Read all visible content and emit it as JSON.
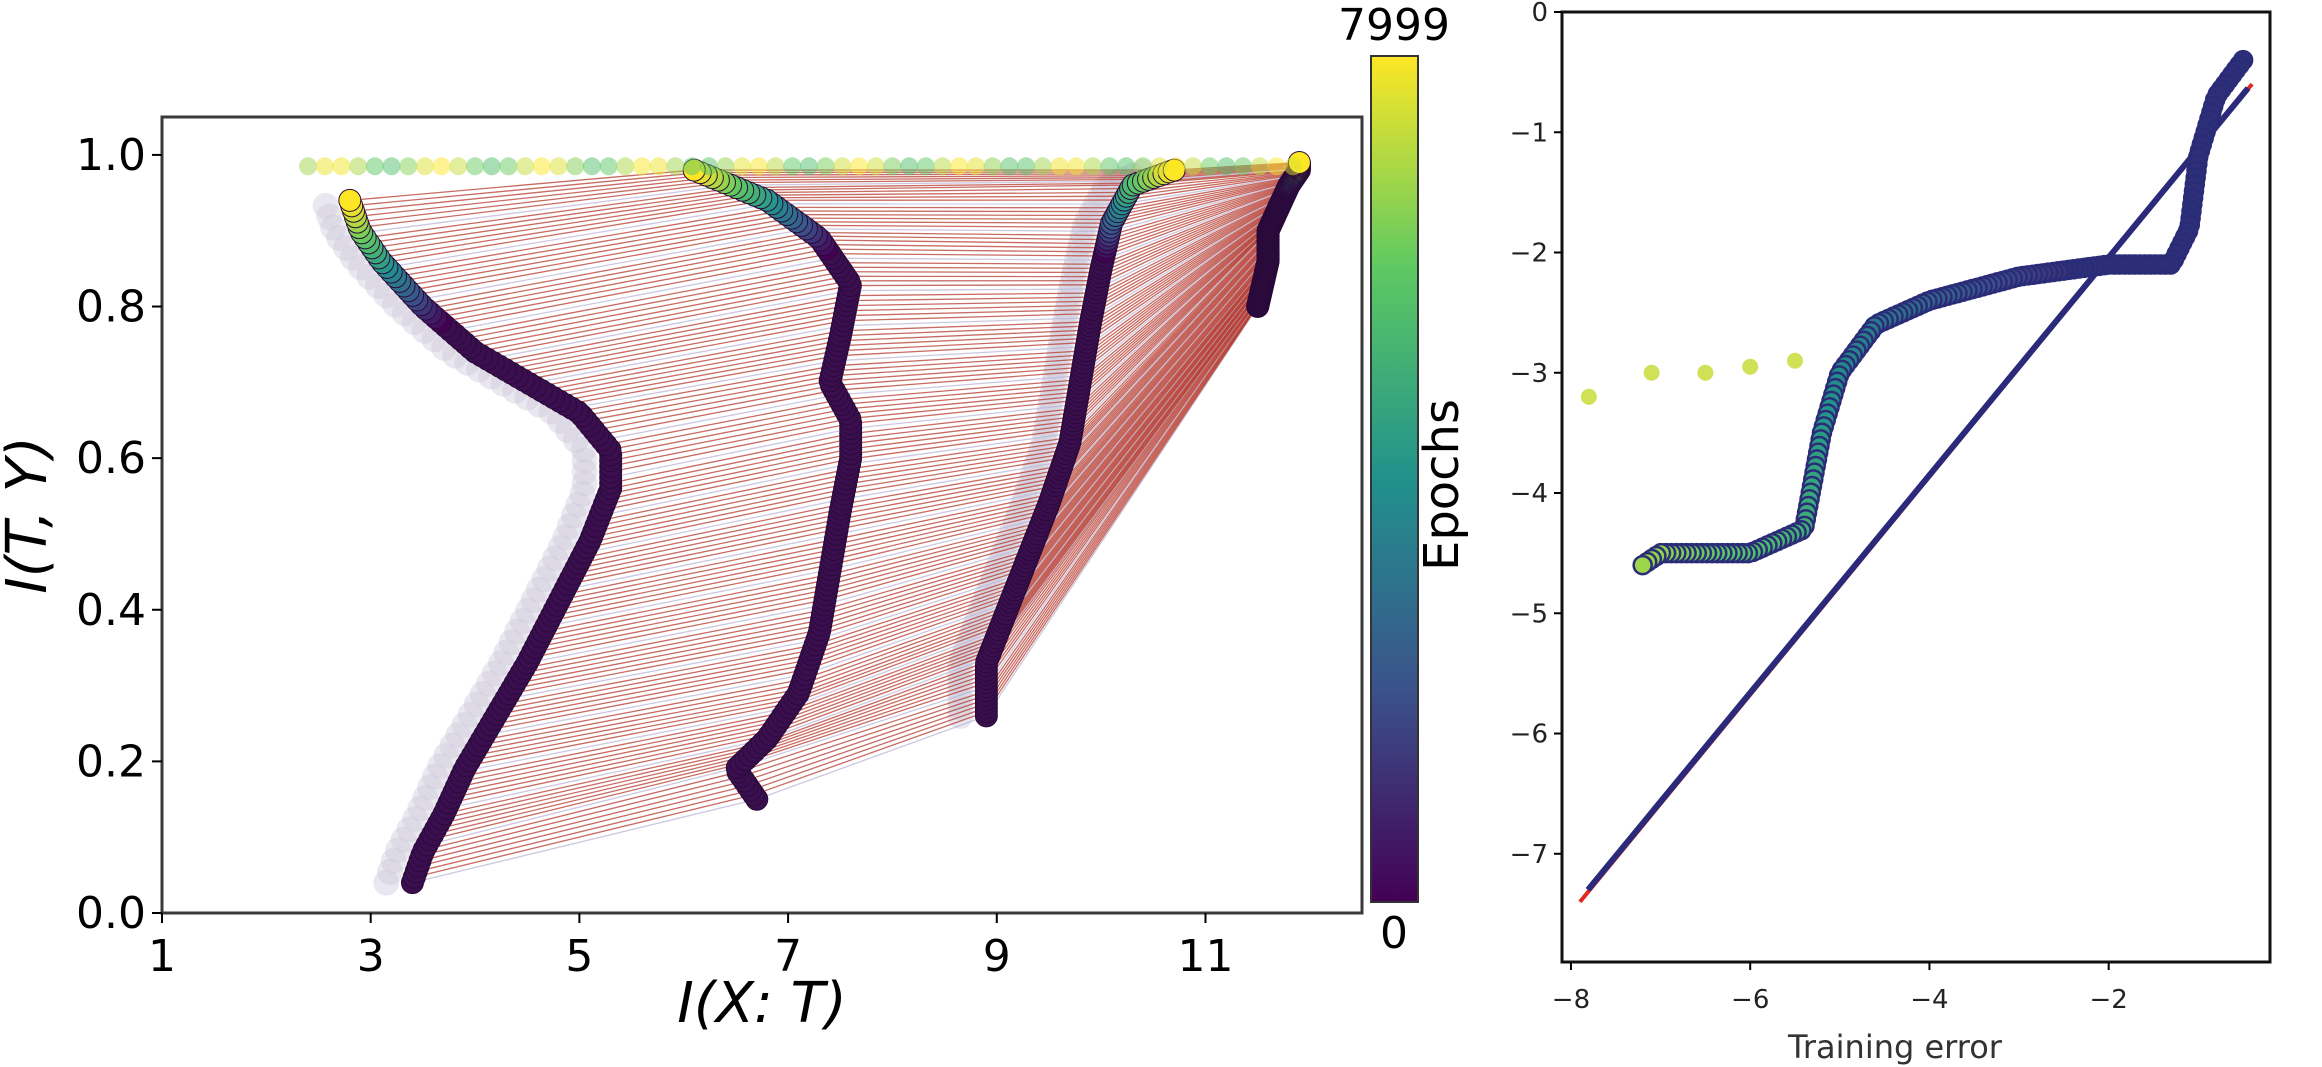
{
  "chart_data": [
    {
      "type": "scatter",
      "xlabel": "I(X: T)",
      "ylabel": "I(T, Y)",
      "xlim": [
        1,
        12.5
      ],
      "ylim": [
        0,
        1.05
      ],
      "x_ticks": [
        "1",
        "3",
        "5",
        "7",
        "9",
        "11"
      ],
      "y_ticks": [
        "0.0",
        "0.2",
        "0.4",
        "0.6",
        "0.8",
        "1.0"
      ],
      "colorbar": {
        "label": "Epochs",
        "min_label": "0",
        "max_label": "7999",
        "colormap": "viridis"
      },
      "series": [
        {
          "points": [
            [
              3.4,
              0.04
            ],
            [
              3.5,
              0.08
            ],
            [
              3.7,
              0.13
            ],
            [
              3.9,
              0.19
            ],
            [
              4.2,
              0.26
            ],
            [
              4.5,
              0.33
            ],
            [
              4.8,
              0.41
            ],
            [
              5.1,
              0.49
            ],
            [
              5.3,
              0.56
            ],
            [
              5.3,
              0.61
            ],
            [
              5.0,
              0.66
            ],
            [
              4.5,
              0.7
            ],
            [
              4.0,
              0.74
            ],
            [
              3.5,
              0.8
            ],
            [
              3.1,
              0.86
            ],
            [
              2.9,
              0.9
            ],
            [
              2.8,
              0.94
            ]
          ]
        },
        {
          "points": [
            [
              6.7,
              0.15
            ],
            [
              6.5,
              0.19
            ],
            [
              6.8,
              0.23
            ],
            [
              7.1,
              0.29
            ],
            [
              7.3,
              0.37
            ],
            [
              7.4,
              0.45
            ],
            [
              7.5,
              0.53
            ],
            [
              7.6,
              0.6
            ],
            [
              7.6,
              0.65
            ],
            [
              7.4,
              0.7
            ],
            [
              7.5,
              0.76
            ],
            [
              7.6,
              0.83
            ],
            [
              7.3,
              0.89
            ],
            [
              6.8,
              0.94
            ],
            [
              6.1,
              0.98
            ]
          ]
        },
        {
          "points": [
            [
              8.9,
              0.26
            ],
            [
              8.9,
              0.33
            ],
            [
              9.1,
              0.4
            ],
            [
              9.3,
              0.47
            ],
            [
              9.5,
              0.54
            ],
            [
              9.7,
              0.62
            ],
            [
              9.8,
              0.7
            ],
            [
              9.9,
              0.78
            ],
            [
              10.0,
              0.85
            ],
            [
              10.1,
              0.91
            ],
            [
              10.3,
              0.96
            ],
            [
              10.7,
              0.98
            ]
          ]
        },
        {
          "points": [
            [
              11.5,
              0.8
            ],
            [
              11.6,
              0.86
            ],
            [
              11.6,
              0.9
            ],
            [
              11.7,
              0.93
            ],
            [
              11.8,
              0.96
            ],
            [
              11.9,
              0.98
            ],
            [
              11.9,
              0.99
            ]
          ]
        }
      ]
    },
    {
      "type": "scatter",
      "xlabel": "Training error",
      "x_ticks": [
        "−8",
        "−6",
        "−4",
        "−2"
      ],
      "y_ticks": [
        "0",
        "−1",
        "−2",
        "−3",
        "−4",
        "−5",
        "−6",
        "−7"
      ],
      "xlim": [
        -8.1,
        -0.2
      ],
      "ylim": [
        -7.9,
        0
      ],
      "series": [
        {
          "points": [
            [
              -0.5,
              -0.4
            ],
            [
              -0.8,
              -0.7
            ],
            [
              -1.0,
              -1.2
            ],
            [
              -1.1,
              -1.8
            ],
            [
              -1.3,
              -2.1
            ],
            [
              -2.0,
              -2.1
            ],
            [
              -3.0,
              -2.2
            ],
            [
              -4.0,
              -2.4
            ],
            [
              -4.6,
              -2.6
            ],
            [
              -5.0,
              -3.0
            ],
            [
              -5.2,
              -3.5
            ],
            [
              -5.3,
              -3.9
            ],
            [
              -5.4,
              -4.3
            ],
            [
              -6.0,
              -4.5
            ],
            [
              -6.5,
              -4.5
            ],
            [
              -7.0,
              -4.5
            ],
            [
              -7.2,
              -4.6
            ]
          ]
        },
        {
          "points": [
            [
              -7.8,
              -3.2
            ],
            [
              -7.1,
              -3.0
            ],
            [
              -6.5,
              -3.0
            ],
            [
              -6.0,
              -2.95
            ],
            [
              -5.5,
              -2.9
            ]
          ]
        },
        {
          "points": [
            [
              -7.9,
              -7.4
            ],
            [
              -0.4,
              -0.6
            ]
          ]
        }
      ]
    }
  ]
}
